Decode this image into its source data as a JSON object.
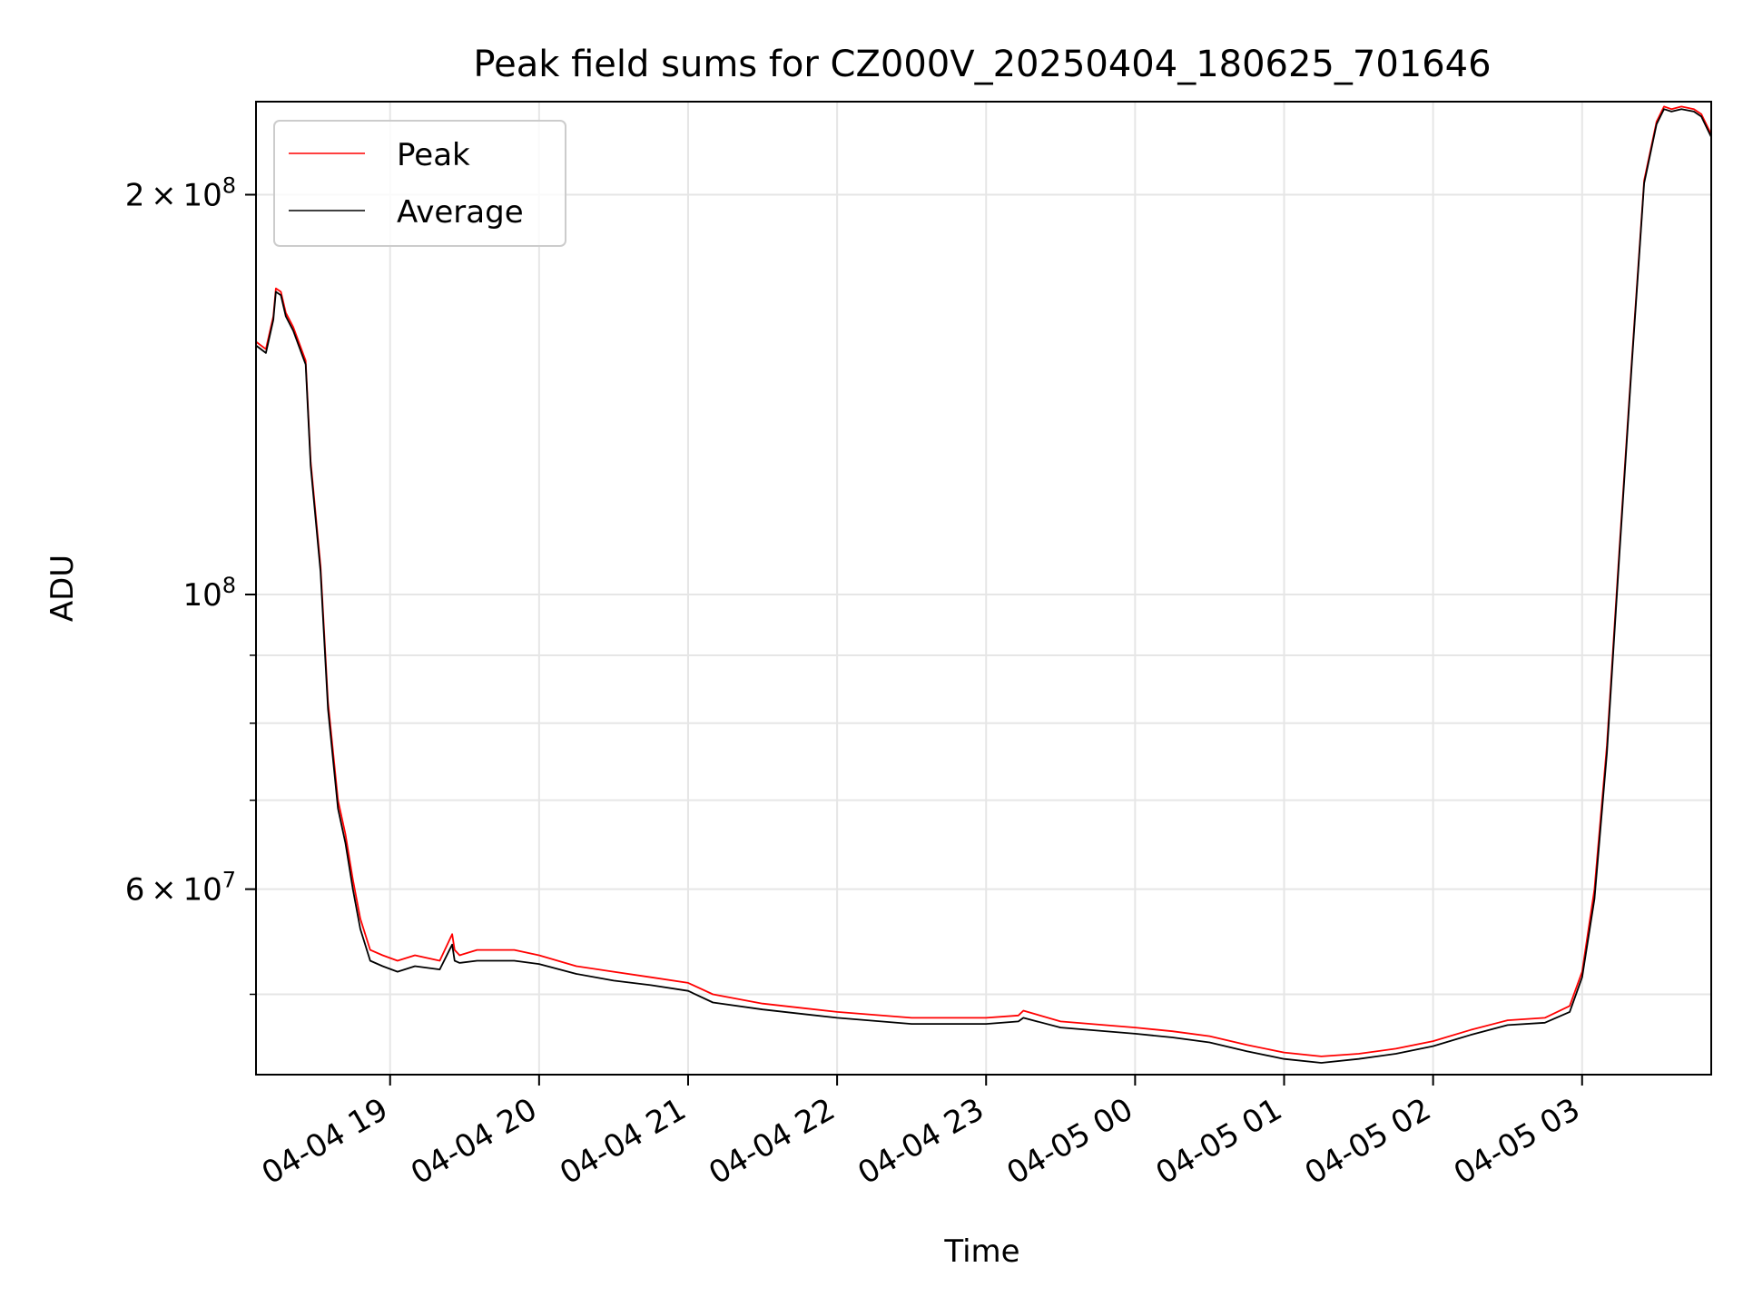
{
  "chart_data": {
    "type": "line",
    "title": "Peak field sums for CZ000V_20250404_180625_701646",
    "xlabel": "Time",
    "ylabel": "ADU",
    "x_unit": "datetime",
    "xlim": [
      "2025-04-04 18:06",
      "2025-04-05 03:52"
    ],
    "ylim": [
      43500000,
      235000000
    ],
    "yscale": "log",
    "grid": true,
    "legend_position": "upper-left",
    "x_ticks": [
      {
        "value": "2025-04-04 19:00",
        "label": "04-04 19"
      },
      {
        "value": "2025-04-04 20:00",
        "label": "04-04 20"
      },
      {
        "value": "2025-04-04 21:00",
        "label": "04-04 21"
      },
      {
        "value": "2025-04-04 22:00",
        "label": "04-04 22"
      },
      {
        "value": "2025-04-04 23:00",
        "label": "04-04 23"
      },
      {
        "value": "2025-04-05 00:00",
        "label": "04-05 00"
      },
      {
        "value": "2025-04-05 01:00",
        "label": "04-05 01"
      },
      {
        "value": "2025-04-05 02:00",
        "label": "04-05 02"
      },
      {
        "value": "2025-04-05 03:00",
        "label": "04-05 03"
      }
    ],
    "y_major_ticks": [
      {
        "value": 200000000,
        "mantissa": "2",
        "exponent": "8"
      },
      {
        "value": 100000000,
        "mantissa": "",
        "exponent": "8"
      },
      {
        "value": 60000000,
        "mantissa": "6",
        "exponent": "7"
      }
    ],
    "y_minor_ticks": [
      50000000,
      70000000,
      80000000,
      90000000
    ],
    "series": [
      {
        "name": "Peak",
        "color": "#ff0000",
        "x": [
          "2025-04-04 18:06",
          "2025-04-04 18:10",
          "2025-04-04 18:13",
          "2025-04-04 18:14",
          "2025-04-04 18:16",
          "2025-04-04 18:18",
          "2025-04-04 18:21",
          "2025-04-04 18:26",
          "2025-04-04 18:28",
          "2025-04-04 18:32",
          "2025-04-04 18:35",
          "2025-04-04 18:39",
          "2025-04-04 18:42",
          "2025-04-04 18:45",
          "2025-04-04 18:48",
          "2025-04-04 18:52",
          "2025-04-04 18:57",
          "2025-04-04 19:03",
          "2025-04-04 19:10",
          "2025-04-04 19:20",
          "2025-04-04 19:25",
          "2025-04-04 19:26",
          "2025-04-04 19:28",
          "2025-04-04 19:35",
          "2025-04-04 19:50",
          "2025-04-04 20:00",
          "2025-04-04 20:15",
          "2025-04-04 20:30",
          "2025-04-04 20:45",
          "2025-04-04 21:00",
          "2025-04-04 21:10",
          "2025-04-04 21:30",
          "2025-04-04 22:00",
          "2025-04-04 22:30",
          "2025-04-04 22:45",
          "2025-04-04 23:00",
          "2025-04-04 23:13",
          "2025-04-04 23:15",
          "2025-04-04 23:30",
          "2025-04-05 00:00",
          "2025-04-05 00:15",
          "2025-04-05 00:30",
          "2025-04-05 00:45",
          "2025-04-05 01:00",
          "2025-04-05 01:15",
          "2025-04-05 01:30",
          "2025-04-05 01:45",
          "2025-04-05 02:00",
          "2025-04-05 02:15",
          "2025-04-05 02:30",
          "2025-04-05 02:45",
          "2025-04-05 02:55",
          "2025-04-05 03:00",
          "2025-04-05 03:05",
          "2025-04-05 03:10",
          "2025-04-05 03:15",
          "2025-04-05 03:20",
          "2025-04-05 03:25",
          "2025-04-05 03:30",
          "2025-04-05 03:33",
          "2025-04-05 03:36",
          "2025-04-05 03:40",
          "2025-04-05 03:45",
          "2025-04-05 03:48",
          "2025-04-05 03:52"
        ],
        "y": [
          155000000,
          153000000,
          162000000,
          170000000,
          169000000,
          163000000,
          159000000,
          150000000,
          126000000,
          105000000,
          83000000,
          70000000,
          66000000,
          61000000,
          57000000,
          54000000,
          53500000,
          53000000,
          53500000,
          53000000,
          55500000,
          54000000,
          53500000,
          54000000,
          54000000,
          53500000,
          52500000,
          52000000,
          51500000,
          51000000,
          50000000,
          49200000,
          48500000,
          48000000,
          48000000,
          48000000,
          48200000,
          48600000,
          47700000,
          47200000,
          46900000,
          46500000,
          45800000,
          45200000,
          44900000,
          45100000,
          45500000,
          46100000,
          47000000,
          47800000,
          48000000,
          49000000,
          52000000,
          60000000,
          77000000,
          108000000,
          150000000,
          205000000,
          227000000,
          233000000,
          232000000,
          233000000,
          232000000,
          230000000,
          222000000
        ]
      },
      {
        "name": "Average",
        "color": "#000000",
        "x": [
          "2025-04-04 18:06",
          "2025-04-04 18:10",
          "2025-04-04 18:13",
          "2025-04-04 18:14",
          "2025-04-04 18:16",
          "2025-04-04 18:18",
          "2025-04-04 18:21",
          "2025-04-04 18:26",
          "2025-04-04 18:28",
          "2025-04-04 18:32",
          "2025-04-04 18:35",
          "2025-04-04 18:39",
          "2025-04-04 18:42",
          "2025-04-04 18:45",
          "2025-04-04 18:48",
          "2025-04-04 18:52",
          "2025-04-04 18:57",
          "2025-04-04 19:03",
          "2025-04-04 19:10",
          "2025-04-04 19:20",
          "2025-04-04 19:25",
          "2025-04-04 19:26",
          "2025-04-04 19:28",
          "2025-04-04 19:35",
          "2025-04-04 19:50",
          "2025-04-04 20:00",
          "2025-04-04 20:15",
          "2025-04-04 20:30",
          "2025-04-04 20:45",
          "2025-04-04 21:00",
          "2025-04-04 21:10",
          "2025-04-04 21:30",
          "2025-04-04 22:00",
          "2025-04-04 22:30",
          "2025-04-04 22:45",
          "2025-04-04 23:00",
          "2025-04-04 23:13",
          "2025-04-04 23:15",
          "2025-04-04 23:30",
          "2025-04-05 00:00",
          "2025-04-05 00:15",
          "2025-04-05 00:30",
          "2025-04-05 00:45",
          "2025-04-05 01:00",
          "2025-04-05 01:15",
          "2025-04-05 01:30",
          "2025-04-05 01:45",
          "2025-04-05 02:00",
          "2025-04-05 02:15",
          "2025-04-05 02:30",
          "2025-04-05 02:45",
          "2025-04-05 02:55",
          "2025-04-05 03:00",
          "2025-04-05 03:05",
          "2025-04-05 03:10",
          "2025-04-05 03:15",
          "2025-04-05 03:20",
          "2025-04-05 03:25",
          "2025-04-05 03:30",
          "2025-04-05 03:33",
          "2025-04-05 03:36",
          "2025-04-05 03:40",
          "2025-04-05 03:45",
          "2025-04-05 03:48",
          "2025-04-05 03:52"
        ],
        "y": [
          154000000,
          152000000,
          161000000,
          169000000,
          168000000,
          162000000,
          158000000,
          149000000,
          125000000,
          104000000,
          82000000,
          69000000,
          65000000,
          60000000,
          56000000,
          53000000,
          52500000,
          52000000,
          52500000,
          52200000,
          54500000,
          53000000,
          52800000,
          53000000,
          53000000,
          52700000,
          51800000,
          51200000,
          50800000,
          50300000,
          49300000,
          48700000,
          48000000,
          47500000,
          47500000,
          47500000,
          47700000,
          48000000,
          47200000,
          46700000,
          46400000,
          46000000,
          45300000,
          44700000,
          44400000,
          44700000,
          45100000,
          45700000,
          46600000,
          47400000,
          47600000,
          48500000,
          51500000,
          59000000,
          76000000,
          107000000,
          149000000,
          204000000,
          226000000,
          232000000,
          231000000,
          232000000,
          231000000,
          229000000,
          221000000
        ]
      }
    ]
  }
}
